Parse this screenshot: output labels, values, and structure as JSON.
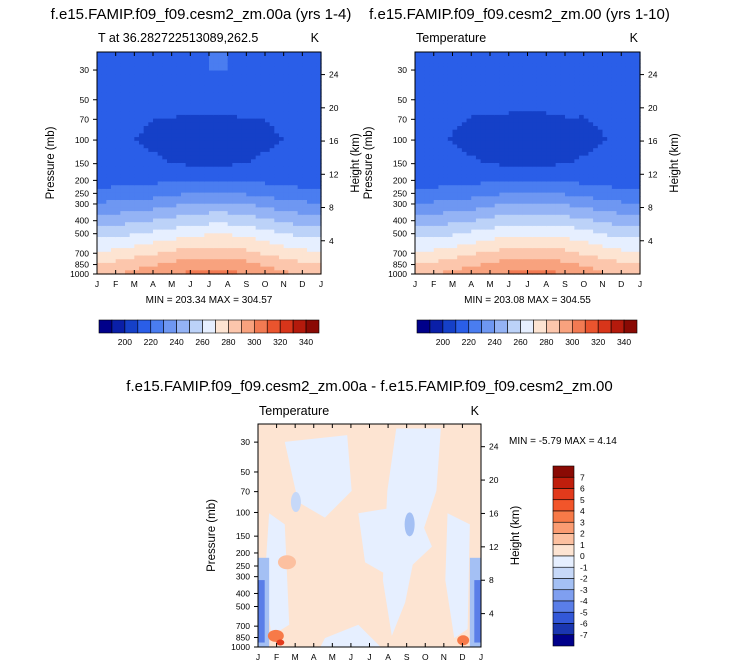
{
  "chart_data": [
    {
      "type": "heatmap",
      "title": "f.e15.FAMIP.f09_f09.cesm2_zm.00a (yrs 1-4)",
      "subtitle_left": "T at 36.282722513089,262.5",
      "subtitle_right": "K",
      "xlabel": "",
      "ylabel": "Pressure (mb)",
      "ylabel_right": "Height (km)",
      "x_ticks": [
        "J",
        "F",
        "M",
        "A",
        "M",
        "J",
        "J",
        "A",
        "S",
        "O",
        "N",
        "D",
        "J"
      ],
      "y_ticks": [
        "30",
        "50",
        "70",
        "100",
        "150",
        "200",
        "250",
        "300",
        "400",
        "500",
        "700",
        "850",
        "1000"
      ],
      "y2_ticks": [
        "24",
        "20",
        "16",
        "12",
        "8",
        "4"
      ],
      "y_scale": "log-pressure",
      "min": 203.34,
      "max": 304.57,
      "minmax_text": "MIN = 203.34  MAX = 304.57",
      "colorbar": {
        "orientation": "horizontal",
        "levels": [
          190,
          200,
          210,
          220,
          230,
          240,
          250,
          260,
          270,
          280,
          290,
          300,
          310,
          320,
          330,
          340
        ],
        "labels": [
          "200",
          "220",
          "240",
          "260",
          "280",
          "300",
          "320",
          "340"
        ],
        "colors": [
          "#00008a",
          "#0a1fa8",
          "#1540c8",
          "#2a5ee8",
          "#4a7df0",
          "#6e97f2",
          "#94b3f5",
          "#bcd2f8",
          "#e6efff",
          "#fde4d2",
          "#fcc6ac",
          "#f8a27e",
          "#f27a52",
          "#ea542e",
          "#d8351a",
          "#b41a0c",
          "#8a0a04"
        ]
      },
      "profile_levels": [
        {
          "p": 1000,
          "T": [
            288,
            290,
            293,
            296,
            299,
            302,
            304,
            303,
            300,
            296,
            292,
            289,
            288
          ]
        },
        {
          "p": 850,
          "T": [
            281,
            283,
            286,
            289,
            292,
            295,
            297,
            296,
            293,
            289,
            285,
            282,
            281
          ]
        },
        {
          "p": 700,
          "T": [
            272,
            273,
            276,
            279,
            282,
            285,
            286,
            286,
            283,
            279,
            276,
            273,
            272
          ]
        },
        {
          "p": 500,
          "T": [
            256,
            257,
            259,
            262,
            265,
            268,
            269,
            269,
            267,
            264,
            260,
            257,
            256
          ]
        },
        {
          "p": 400,
          "T": [
            245,
            246,
            248,
            250,
            253,
            256,
            257,
            257,
            255,
            252,
            249,
            246,
            245
          ]
        },
        {
          "p": 300,
          "T": [
            231,
            232,
            233,
            235,
            238,
            241,
            242,
            242,
            240,
            237,
            234,
            232,
            231
          ]
        },
        {
          "p": 250,
          "T": [
            223,
            224,
            225,
            226,
            228,
            230,
            231,
            231,
            229,
            227,
            225,
            223,
            223
          ]
        },
        {
          "p": 200,
          "T": [
            216,
            216,
            217,
            218,
            219,
            220,
            220,
            220,
            219,
            218,
            217,
            216,
            216
          ]
        },
        {
          "p": 150,
          "T": [
            213,
            213,
            212,
            211,
            210,
            209,
            209,
            209,
            210,
            211,
            212,
            213,
            213
          ]
        },
        {
          "p": 100,
          "T": [
            212,
            211,
            210,
            209,
            208,
            207,
            207,
            207,
            208,
            209,
            210,
            211,
            212
          ]
        },
        {
          "p": 70,
          "T": [
            211,
            211,
            211,
            210,
            210,
            209,
            209,
            209,
            210,
            210,
            211,
            211,
            211
          ]
        },
        {
          "p": 50,
          "T": [
            212,
            212,
            212,
            212,
            212,
            213,
            213,
            213,
            213,
            212,
            212,
            212,
            212
          ]
        },
        {
          "p": 30,
          "T": [
            216,
            216,
            216,
            217,
            218,
            219,
            220,
            220,
            219,
            218,
            217,
            216,
            216
          ]
        }
      ]
    },
    {
      "type": "heatmap",
      "title": "f.e15.FAMIP.f09_f09.cesm2_zm.00 (yrs 1-10)",
      "subtitle_left": "Temperature",
      "subtitle_right": "K",
      "xlabel": "",
      "ylabel": "Pressure (mb)",
      "ylabel_right": "Height (km)",
      "x_ticks": [
        "J",
        "F",
        "M",
        "A",
        "M",
        "J",
        "J",
        "A",
        "S",
        "O",
        "N",
        "D",
        "J"
      ],
      "y_ticks": [
        "30",
        "50",
        "70",
        "100",
        "150",
        "200",
        "250",
        "300",
        "400",
        "500",
        "700",
        "850",
        "1000"
      ],
      "y2_ticks": [
        "24",
        "20",
        "16",
        "12",
        "8",
        "4"
      ],
      "y_scale": "log-pressure",
      "min": 203.08,
      "max": 304.55,
      "minmax_text": "MIN = 203.08  MAX = 304.55",
      "colorbar": {
        "orientation": "horizontal",
        "levels": [
          190,
          200,
          210,
          220,
          230,
          240,
          250,
          260,
          270,
          280,
          290,
          300,
          310,
          320,
          330,
          340
        ],
        "labels": [
          "200",
          "220",
          "240",
          "260",
          "280",
          "300",
          "320",
          "340"
        ],
        "colors": [
          "#00008a",
          "#0a1fa8",
          "#1540c8",
          "#2a5ee8",
          "#4a7df0",
          "#6e97f2",
          "#94b3f5",
          "#bcd2f8",
          "#e6efff",
          "#fde4d2",
          "#fcc6ac",
          "#f8a27e",
          "#f27a52",
          "#ea542e",
          "#d8351a",
          "#b41a0c",
          "#8a0a04"
        ]
      }
    },
    {
      "type": "heatmap",
      "title": "f.e15.FAMIP.f09_f09.cesm2_zm.00a - f.e15.FAMIP.f09_f09.cesm2_zm.00",
      "subtitle_left": "Temperature",
      "subtitle_right": "K",
      "xlabel": "",
      "ylabel": "Pressure (mb)",
      "ylabel_right": "Height (km)",
      "x_ticks": [
        "J",
        "F",
        "M",
        "A",
        "M",
        "J",
        "J",
        "A",
        "S",
        "O",
        "N",
        "D",
        "J"
      ],
      "y_ticks": [
        "30",
        "50",
        "70",
        "100",
        "150",
        "200",
        "250",
        "300",
        "400",
        "500",
        "700",
        "850",
        "1000"
      ],
      "y2_ticks": [
        "24",
        "20",
        "16",
        "12",
        "8",
        "4"
      ],
      "y_scale": "log-pressure",
      "min": -5.79,
      "max": 4.14,
      "minmax_text": "MIN =  -5.79 MAX =   4.14",
      "colorbar": {
        "orientation": "vertical",
        "labels": [
          "7",
          "6",
          "5",
          "4",
          "3",
          "2",
          "1",
          "0",
          "-1",
          "-2",
          "-3",
          "-4",
          "-5",
          "-6",
          "-7"
        ],
        "colors": [
          "#8a0a04",
          "#c01e0c",
          "#e23a1c",
          "#f2552a",
          "#f77a48",
          "#fa9c72",
          "#fcc0a0",
          "#fde4d2",
          "#e6efff",
          "#c6d8f8",
          "#a4c0f4",
          "#7f9ff0",
          "#5a7ee8",
          "#3358d8",
          "#1a36b0",
          "#00008a"
        ]
      }
    }
  ]
}
